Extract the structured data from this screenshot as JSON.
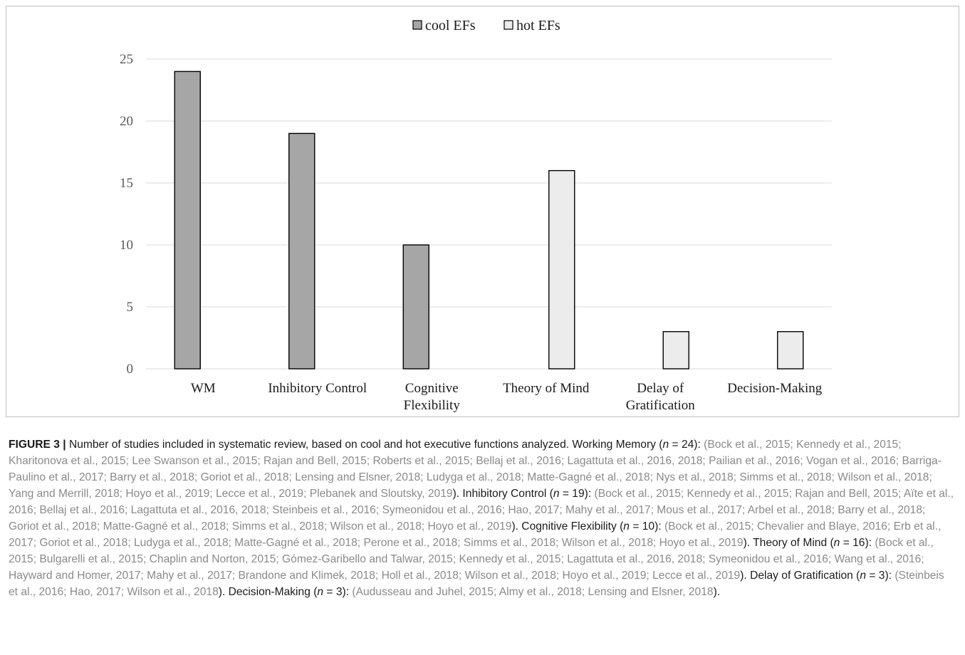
{
  "chart_data": {
    "type": "bar",
    "categories": [
      "WM",
      "Inhibitory Control",
      "Cognitive Flexibility",
      "Theory of Mind",
      "Delay of Gratification",
      "Decision-Making"
    ],
    "category_lines": [
      [
        "WM"
      ],
      [
        "Inhibitory Control"
      ],
      [
        "Cognitive",
        "Flexibility"
      ],
      [
        "Theory of Mind"
      ],
      [
        "Delay of",
        "Gratification"
      ],
      [
        "Decision-Making"
      ]
    ],
    "series": [
      {
        "name": "cool EFs",
        "color": "#a6a6a6",
        "values": [
          24,
          19,
          10,
          0,
          0,
          0
        ]
      },
      {
        "name": "hot EFs",
        "color": "#ececec",
        "values": [
          0,
          0,
          0,
          16,
          3,
          3
        ]
      }
    ],
    "yticks": [
      "0",
      "5",
      "10",
      "15",
      "20",
      "25"
    ],
    "ylim": [
      0,
      25
    ],
    "grid": true,
    "legend_position": "top-center",
    "title": "",
    "xlabel": "",
    "ylabel": ""
  },
  "caption": {
    "label": "FIGURE 3 |",
    "segments": [
      {
        "text": " Number of studies included in systematic review, based on cool and hot executive functions analyzed. Working Memory (",
        "style": "dark"
      },
      {
        "text": "n",
        "style": "dark-italic"
      },
      {
        "text": " = 24): ",
        "style": "dark"
      },
      {
        "text": "(Bock et al., 2015; Kennedy et al., 2015; Kharitonova et al., 2015; Lee Swanson et al., 2015; Rajan and Bell, 2015; Roberts et al., 2015; Bellaj et al., 2016; Lagattuta et al., 2016, 2018; Pailian et al., 2016; Vogan et al., 2016; Barriga-Paulino et al., 2017; Barry et al., 2018; Goriot et al., 2018; Lensing and Elsner, 2018; Ludyga et al., 2018; Matte-Gagné et al., 2018; Nys et al., 2018; Simms et al., 2018; Wilson et al., 2018; Yang and Merrill, 2018; Hoyo et al., 2019; Lecce et al., 2019; Plebanek and Sloutsky, 2019",
        "style": "light"
      },
      {
        "text": "). Inhibitory Control (",
        "style": "dark"
      },
      {
        "text": "n",
        "style": "dark-italic"
      },
      {
        "text": " = 19): ",
        "style": "dark"
      },
      {
        "text": "(Bock et al., 2015; Kennedy et al., 2015; Rajan and Bell, 2015; Aïte et al., 2016; Bellaj et al., 2016; Lagattuta et al., 2016, 2018; Steinbeis et al., 2016; Symeonidou et al., 2016; Hao, 2017; Mahy et al., 2017; Mous et al., 2017; Arbel et al., 2018; Barry et al., 2018; Goriot et al., 2018; Matte-Gagné et al., 2018; Simms et al., 2018; Wilson et al., 2018; Hoyo et al., 2019",
        "style": "light"
      },
      {
        "text": "). Cognitive Flexibility (",
        "style": "dark"
      },
      {
        "text": "n",
        "style": "dark-italic"
      },
      {
        "text": " = 10): ",
        "style": "dark"
      },
      {
        "text": "(Bock et al., 2015; Chevalier and Blaye, 2016; Erb et al., 2017; Goriot et al., 2018; Ludyga et al., 2018; Matte-Gagné et al., 2018; Perone et al., 2018; Simms et al., 2018; Wilson et al., 2018; Hoyo et al., 2019",
        "style": "light"
      },
      {
        "text": "). Theory of Mind (",
        "style": "dark"
      },
      {
        "text": "n",
        "style": "dark-italic"
      },
      {
        "text": " = 16): ",
        "style": "dark"
      },
      {
        "text": "(Bock et al., 2015; Bulgarelli et al., 2015; Chaplin and Norton, 2015; Gómez-Garibello and Talwar, 2015; Kennedy et al., 2015; Lagattuta et al., 2016, 2018; Symeonidou et al., 2016; Wang et al., 2016; Hayward and Homer, 2017; Mahy et al., 2017; Brandone and Klimek, 2018; Holl et al., 2018; Wilson et al., 2018; Hoyo et al., 2019; Lecce et al., 2019",
        "style": "light"
      },
      {
        "text": "). Delay of Gratification (",
        "style": "dark"
      },
      {
        "text": "n",
        "style": "dark-italic"
      },
      {
        "text": " = 3): ",
        "style": "dark"
      },
      {
        "text": "(Steinbeis et al., 2016; Hao, 2017; Wilson et al., 2018",
        "style": "light"
      },
      {
        "text": "). Decision-Making (",
        "style": "dark"
      },
      {
        "text": "n",
        "style": "dark-italic"
      },
      {
        "text": " = 3): ",
        "style": "dark"
      },
      {
        "text": "(Audusseau and Juhel, 2015; Almy et al., 2018; Lensing and Elsner, 2018",
        "style": "light"
      },
      {
        "text": ").",
        "style": "dark"
      }
    ]
  }
}
